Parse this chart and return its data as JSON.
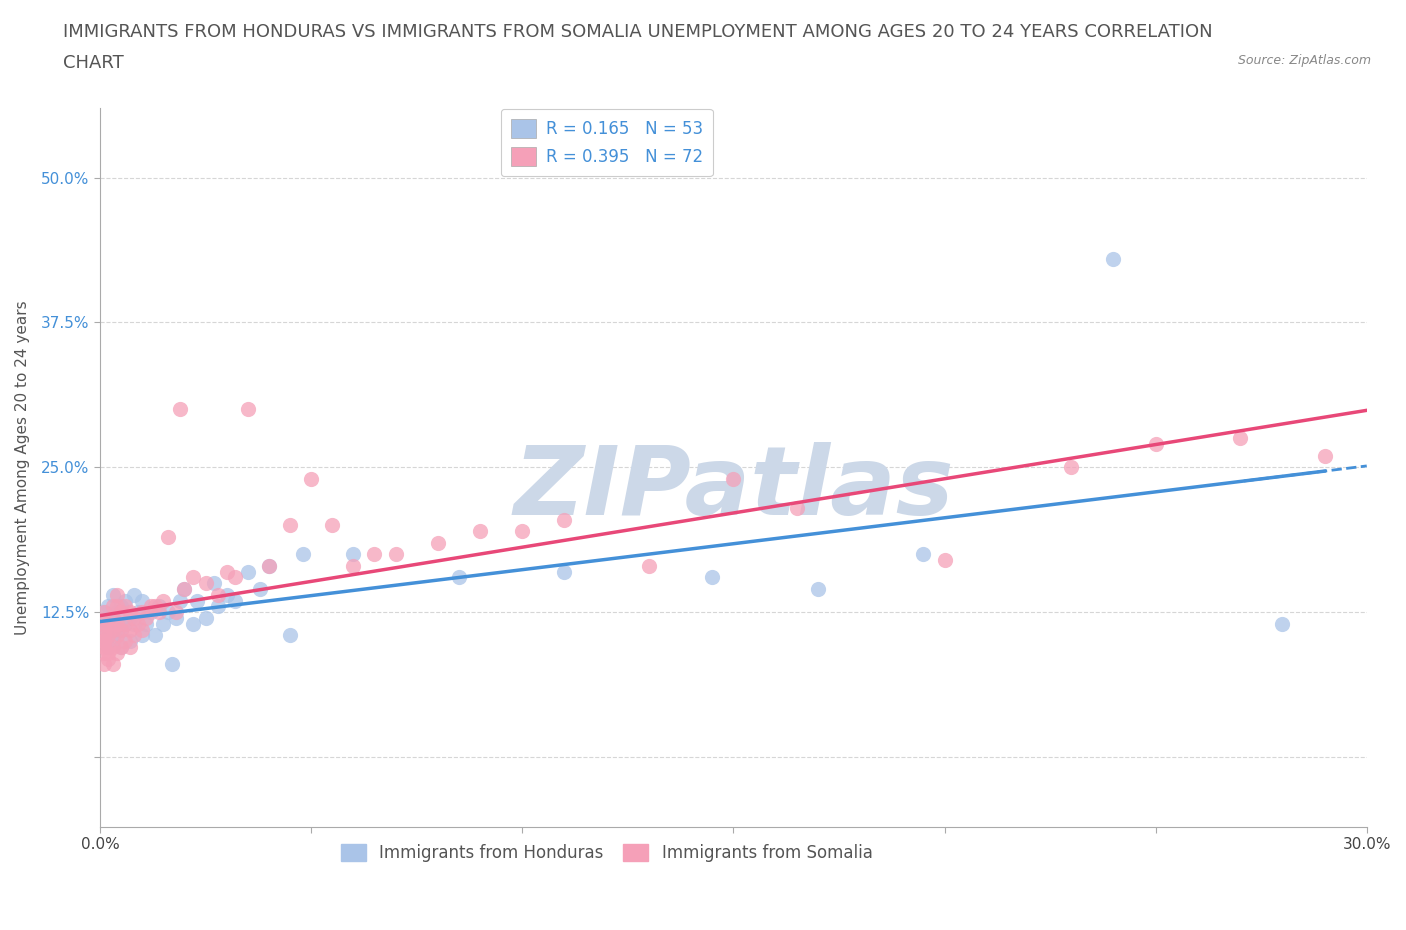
{
  "title_line1": "IMMIGRANTS FROM HONDURAS VS IMMIGRANTS FROM SOMALIA UNEMPLOYMENT AMONG AGES 20 TO 24 YEARS CORRELATION",
  "title_line2": "CHART",
  "source_text": "Source: ZipAtlas.com",
  "ylabel": "Unemployment Among Ages 20 to 24 years",
  "legend_label_honduras": "Immigrants from Honduras",
  "legend_label_somalia": "Immigrants from Somalia",
  "legend_label1": "R = 0.165   N = 53",
  "legend_label2": "R = 0.395   N = 72",
  "honduras_color": "#aac4e8",
  "somalia_color": "#f5a0b8",
  "honduras_line_color": "#4490d8",
  "somalia_line_color": "#e84878",
  "watermark_color": "#ccd8e8",
  "background_color": "#ffffff",
  "grid_color": "#cccccc",
  "title_fontsize": 13,
  "axis_label_fontsize": 11,
  "tick_fontsize": 11,
  "legend_fontsize": 12,
  "xlim": [
    0.0,
    0.3
  ],
  "ylim": [
    -0.06,
    0.56
  ],
  "yticks": [
    0.0,
    0.125,
    0.25,
    0.375,
    0.5
  ],
  "ytick_labels": [
    "",
    "12.5%",
    "25.0%",
    "37.5%",
    "50.0%"
  ],
  "xticks": [
    0.0,
    0.05,
    0.1,
    0.15,
    0.2,
    0.25,
    0.3
  ],
  "xtick_labels": [
    "0.0%",
    "",
    "",
    "",
    "",
    "",
    "30.0%"
  ],
  "honduras_scatter_x": [
    0.001,
    0.001,
    0.001,
    0.002,
    0.002,
    0.002,
    0.003,
    0.003,
    0.003,
    0.004,
    0.004,
    0.005,
    0.005,
    0.005,
    0.006,
    0.006,
    0.007,
    0.007,
    0.008,
    0.008,
    0.009,
    0.01,
    0.01,
    0.011,
    0.012,
    0.013,
    0.014,
    0.015,
    0.016,
    0.017,
    0.018,
    0.019,
    0.02,
    0.022,
    0.023,
    0.025,
    0.027,
    0.028,
    0.03,
    0.032,
    0.035,
    0.038,
    0.04,
    0.045,
    0.048,
    0.06,
    0.085,
    0.11,
    0.145,
    0.17,
    0.195,
    0.24,
    0.28
  ],
  "honduras_scatter_y": [
    0.1,
    0.11,
    0.125,
    0.095,
    0.115,
    0.13,
    0.1,
    0.12,
    0.14,
    0.105,
    0.125,
    0.095,
    0.11,
    0.13,
    0.115,
    0.135,
    0.1,
    0.12,
    0.115,
    0.14,
    0.125,
    0.105,
    0.135,
    0.115,
    0.125,
    0.105,
    0.13,
    0.115,
    0.125,
    0.08,
    0.12,
    0.135,
    0.145,
    0.115,
    0.135,
    0.12,
    0.15,
    0.13,
    0.14,
    0.135,
    0.16,
    0.145,
    0.165,
    0.105,
    0.175,
    0.175,
    0.155,
    0.16,
    0.155,
    0.145,
    0.175,
    0.43,
    0.115
  ],
  "somalia_scatter_x": [
    0.001,
    0.001,
    0.001,
    0.001,
    0.001,
    0.001,
    0.001,
    0.001,
    0.001,
    0.002,
    0.002,
    0.002,
    0.002,
    0.002,
    0.003,
    0.003,
    0.003,
    0.003,
    0.003,
    0.004,
    0.004,
    0.004,
    0.004,
    0.004,
    0.005,
    0.005,
    0.005,
    0.006,
    0.006,
    0.006,
    0.007,
    0.007,
    0.007,
    0.008,
    0.008,
    0.009,
    0.01,
    0.01,
    0.011,
    0.012,
    0.013,
    0.014,
    0.015,
    0.016,
    0.018,
    0.019,
    0.02,
    0.022,
    0.025,
    0.028,
    0.03,
    0.032,
    0.035,
    0.04,
    0.045,
    0.05,
    0.055,
    0.06,
    0.065,
    0.07,
    0.08,
    0.09,
    0.1,
    0.11,
    0.13,
    0.15,
    0.165,
    0.2,
    0.23,
    0.25,
    0.27,
    0.29
  ],
  "somalia_scatter_y": [
    0.09,
    0.095,
    0.1,
    0.105,
    0.11,
    0.115,
    0.08,
    0.1,
    0.125,
    0.085,
    0.095,
    0.105,
    0.115,
    0.09,
    0.08,
    0.095,
    0.11,
    0.12,
    0.13,
    0.09,
    0.105,
    0.115,
    0.13,
    0.14,
    0.095,
    0.11,
    0.125,
    0.1,
    0.115,
    0.13,
    0.095,
    0.11,
    0.125,
    0.105,
    0.12,
    0.115,
    0.11,
    0.125,
    0.12,
    0.13,
    0.13,
    0.125,
    0.135,
    0.19,
    0.125,
    0.3,
    0.145,
    0.155,
    0.15,
    0.14,
    0.16,
    0.155,
    0.3,
    0.165,
    0.2,
    0.24,
    0.2,
    0.165,
    0.175,
    0.175,
    0.185,
    0.195,
    0.195,
    0.205,
    0.165,
    0.24,
    0.215,
    0.17,
    0.25,
    0.27,
    0.275,
    0.26
  ]
}
